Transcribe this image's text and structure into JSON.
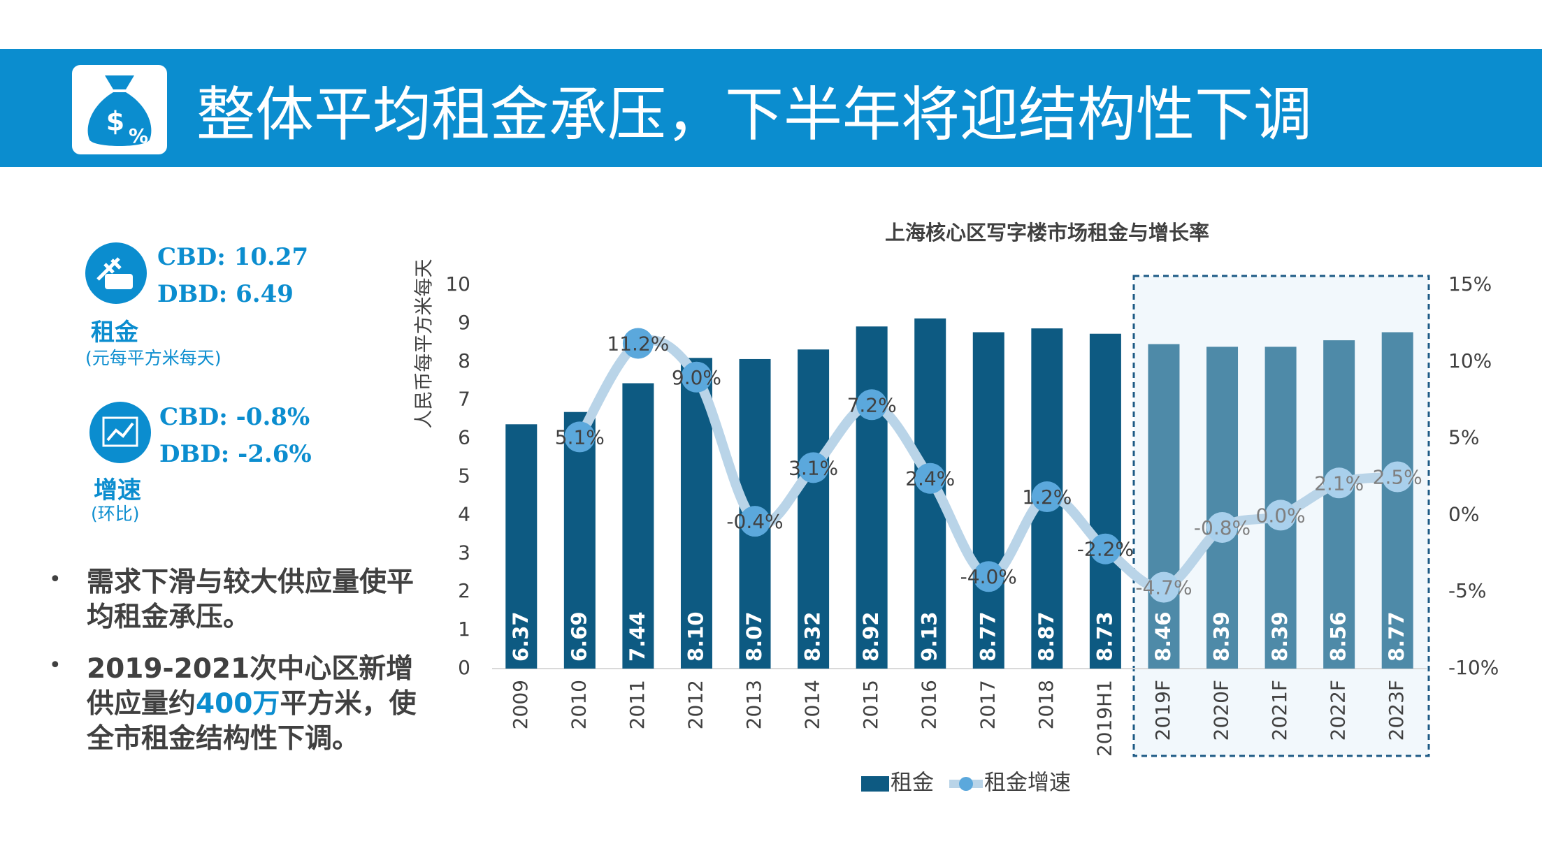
{
  "header": {
    "title": "整体平均租金承压，下半年将迎结构性下调"
  },
  "summary": [
    {
      "lines": [
        "CBD: 10.27",
        "DBD: 6.49"
      ],
      "label": "租金",
      "sublabel": "(元每平方米每天)"
    },
    {
      "lines": [
        "CBD: -0.8%",
        "DBD: -2.6%"
      ],
      "label": "增速",
      "sublabel": "(环比)"
    }
  ],
  "bullets": [
    [
      "需求下滑与较大供应量使平均租金承压。"
    ],
    [
      "2019-2021次中心区新增供应量约",
      "400万",
      "平方米，使全市租金结构性下调。"
    ]
  ],
  "chart_data": {
    "type": "bar",
    "title": "上海核心区写字楼市场租金与增长率",
    "y_label": "人民币每平方米每天",
    "categories": [
      "2009",
      "2010",
      "2011",
      "2012",
      "2013",
      "2014",
      "2015",
      "2016",
      "2017",
      "2018",
      "2019H1",
      "2019F",
      "2020F",
      "2021F",
      "2022F",
      "2023F"
    ],
    "series": [
      {
        "name": "租金",
        "type": "bar",
        "color": "#0d5a82",
        "colors": [
          "#0d5a82",
          "#0d5a82",
          "#0d5a82",
          "#0d5a82",
          "#0d5a82",
          "#0d5a82",
          "#0d5a82",
          "#0d5a82",
          "#0d5a82",
          "#0d5a82",
          "#0d5a82",
          "#4e8aa8",
          "#4e8aa8",
          "#4e8aa8",
          "#4e8aa8",
          "#4e8aa8"
        ],
        "values": [
          6.37,
          6.69,
          7.44,
          8.1,
          8.07,
          8.32,
          8.92,
          9.13,
          8.77,
          8.87,
          8.73,
          8.46,
          8.39,
          8.39,
          8.56,
          8.77
        ],
        "value_labels": [
          "6.37",
          "6.69",
          "7.44",
          "8.10",
          "8.07",
          "8.32",
          "8.92",
          "9.13",
          "8.77",
          "8.87",
          "8.73",
          "8.46",
          "8.39",
          "8.39",
          "8.56",
          "8.77"
        ]
      },
      {
        "name": "租金增速",
        "type": "line",
        "axis": "y2",
        "color": "#b9d4e8",
        "marker_colors": [
          null,
          "#5ba8dc",
          "#5ba8dc",
          "#5ba8dc",
          "#5ba8dc",
          "#5ba8dc",
          "#5ba8dc",
          "#5ba8dc",
          "#5ba8dc",
          "#5ba8dc",
          "#5ba8dc",
          "#a9d0ec",
          "#a9d0ec",
          "#a9d0ec",
          "#a9d0ec",
          "#a9d0ec"
        ],
        "label_colors": [
          null,
          "#404040",
          "#404040",
          "#404040",
          "#404040",
          "#404040",
          "#404040",
          "#404040",
          "#404040",
          "#404040",
          "#404040",
          "#7f7f7f",
          "#7f7f7f",
          "#7f7f7f",
          "#7f7f7f",
          "#7f7f7f"
        ],
        "values": [
          null,
          5.1,
          11.2,
          9.0,
          -0.4,
          3.1,
          7.2,
          2.4,
          -4.0,
          1.2,
          -2.2,
          -4.7,
          -0.8,
          0.0,
          2.1,
          2.5
        ],
        "value_labels": [
          null,
          "5.1%",
          "11.2%",
          "9.0%",
          "-0.4%",
          "3.1%",
          "7.2%",
          "2.4%",
          "-4.0%",
          "1.2%",
          "-2.2%",
          "-4.7%",
          "-0.8%",
          "0.0%",
          "2.1%",
          "2.5%"
        ]
      }
    ],
    "ylim": [
      0,
      10
    ],
    "yticks": [
      0,
      1,
      2,
      3,
      4,
      5,
      6,
      7,
      8,
      9,
      10
    ],
    "y2lim": [
      -10,
      15
    ],
    "y2ticks": [
      {
        "value": -10,
        "label": "-10%"
      },
      {
        "value": -5,
        "label": "-5%"
      },
      {
        "value": 0,
        "label": "0%"
      },
      {
        "value": 5,
        "label": "5%"
      },
      {
        "value": 10,
        "label": "10%"
      },
      {
        "value": 15,
        "label": "15%"
      }
    ],
    "grid": false,
    "legend": "bottom"
  }
}
